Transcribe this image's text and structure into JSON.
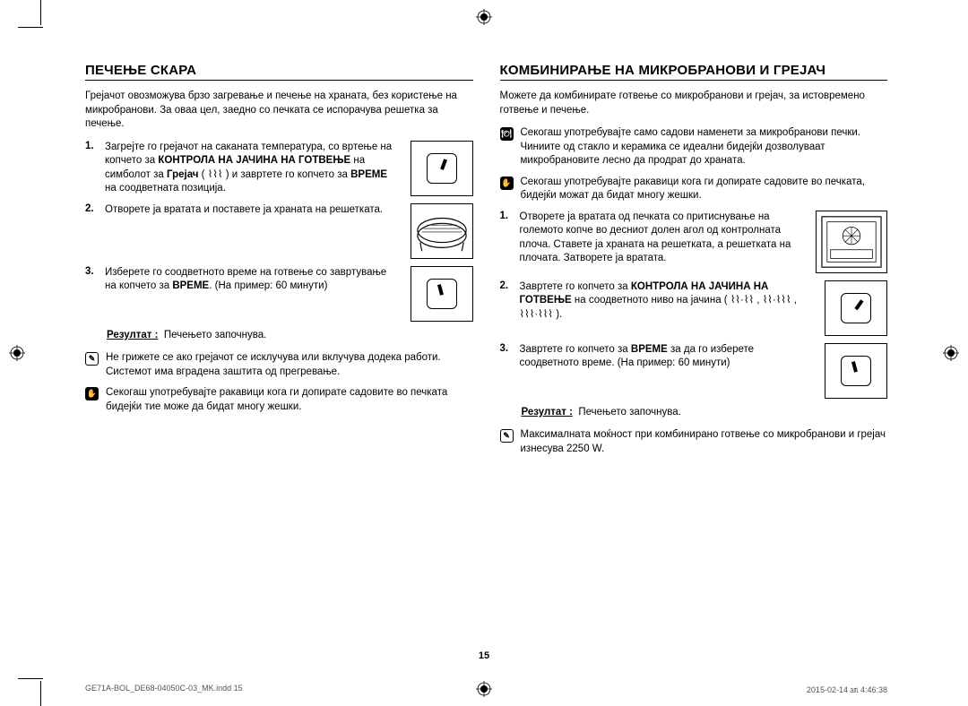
{
  "left": {
    "heading": "ПЕЧЕЊЕ СКАРА",
    "intro": "Грејачот овозможува брзо загревање и печење на храната, без користење на микробранови. За оваа цел, заедно со печката се испорачува решетка за печење.",
    "step1_num": "1.",
    "step1": "Загрејте го грејачот на саканата температура, со вртење на копчето за <b>КОНТРОЛА НА ЈАЧИНА НА ГОТВЕЊЕ</b> на симболот за <b>Грејач</b> ( ⌇⌇⌇ ) и завртете го копчето за <b>ВРЕМЕ</b> на соодветната позиција.",
    "step2_num": "2.",
    "step2": "Отворете ја вратата и поставете ја храната на решетката.",
    "step3_num": "3.",
    "step3": "Изберете го соодветното време на готвење со завртување на копчето за <b>ВРЕМЕ</b>. (На пример: 60 минути)",
    "result_label": "Резултат :",
    "result_text": "Печењето започнува.",
    "note1": "Не грижете се ако грејачот се исклучува или вклучува додека работи. Системот има вградена заштита од прегревање.",
    "note2": "Секогаш употребувајте ракавици кога ги допирате садовите во печката бидејќи тие може да бидат многу жешки."
  },
  "right": {
    "heading": "КОМБИНИРАЊЕ НА МИКРОБРАНОВИ И ГРЕЈАЧ",
    "intro": "Можете да комбинирате готвење со микробранови и грејач, за истовремено готвење и печење.",
    "noteA": "Секогаш употребувајте само садови наменети за микробранови печки. Чиниите од стакло и керамика се идеални бидејќи дозволуваат микробрановите лесно да продрат до храната.",
    "noteB": "Секогаш употребувајте ракавици кога ги допирате садовите во печката, бидејќи можат да бидат многу жешки.",
    "step1_num": "1.",
    "step1": "Отворете ја вратата од печката со притиснување на големото копче во десниот долен агол од контролната плоча. Ставете ја храната на решетката, а решетката на плочата. Затворете ја вратата.",
    "step2_num": "2.",
    "step2": "Завртете го копчето за <b>КОНТРОЛА НА ЈАЧИНА НА ГОТВЕЊЕ</b> на соодветното ниво на јачина ( ⌇⌇·⌇⌇ , ⌇⌇·⌇⌇⌇ , ⌇⌇⌇·⌇⌇⌇ ).",
    "step3_num": "3.",
    "step3": "Завртете го копчето за <b>ВРЕМЕ</b> за да го изберете соодветното време. (На пример: 60 минути)",
    "result_label": "Резултат :",
    "result_text": "Печењето започнува.",
    "noteC": "Максималната моќност при комбинирано готвење со микробранови и грејач изнесува 2250 W."
  },
  "pagenum": "15",
  "footer_left": "GE71A-BOL_DE68-04050C-03_MK.indd   15",
  "footer_right": "2015-02-14   ㏂ 4:46:38"
}
